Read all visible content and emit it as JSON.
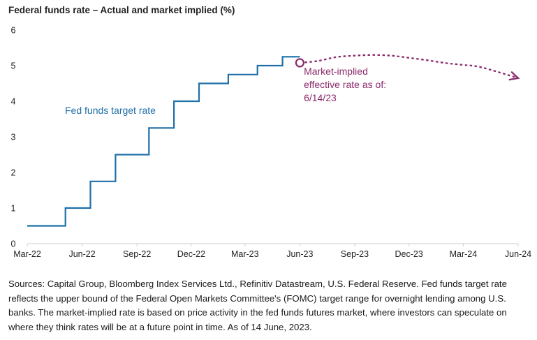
{
  "title": "Federal funds rate – Actual and market implied (%)",
  "source_note": "Sources: Capital Group, Bloomberg Index Services Ltd., Refinitiv Datastream, U.S. Federal Reserve. Fed funds target rate reflects the upper bound of the Federal Open Markets Committee's (FOMC) target range for overnight lending among U.S. banks. The market-implied rate is based on price activity in the fed funds futures market, where investors can speculate on where they think rates will be at a future point in time. As of 14 June, 2023.",
  "chart_data": {
    "type": "line",
    "title": "Federal funds rate – Actual and market implied (%)",
    "xlabel": "",
    "ylabel": "",
    "x_tick_labels": [
      "Mar-22",
      "Jun-22",
      "Sep-22",
      "Dec-22",
      "Mar-23",
      "Jun-23",
      "Sep-23",
      "Dec-23",
      "Mar-24",
      "Jun-24"
    ],
    "x_tick_dates": [
      "2022-03-01",
      "2022-06-01",
      "2022-09-01",
      "2022-12-01",
      "2023-03-01",
      "2023-06-01",
      "2023-09-01",
      "2023-12-01",
      "2024-03-01",
      "2024-06-01"
    ],
    "y_ticks": [
      0,
      1,
      2,
      3,
      4,
      5,
      6
    ],
    "xlim": [
      "2022-03-01",
      "2024-06-01"
    ],
    "ylim": [
      0,
      6
    ],
    "grid": false,
    "series": [
      {
        "name": "Fed funds target rate",
        "style": "step",
        "color": "#1f6fa8",
        "points": [
          [
            "2022-03-01",
            0.5
          ],
          [
            "2022-05-04",
            0.5
          ],
          [
            "2022-05-04",
            1.0
          ],
          [
            "2022-06-15",
            1.0
          ],
          [
            "2022-06-15",
            1.75
          ],
          [
            "2022-07-27",
            1.75
          ],
          [
            "2022-07-27",
            2.5
          ],
          [
            "2022-09-21",
            2.5
          ],
          [
            "2022-09-21",
            3.25
          ],
          [
            "2022-11-02",
            3.25
          ],
          [
            "2022-11-02",
            4.0
          ],
          [
            "2022-12-14",
            4.0
          ],
          [
            "2022-12-14",
            4.5
          ],
          [
            "2023-02-01",
            4.5
          ],
          [
            "2023-02-01",
            4.75
          ],
          [
            "2023-03-22",
            4.75
          ],
          [
            "2023-03-22",
            5.0
          ],
          [
            "2023-05-03",
            5.0
          ],
          [
            "2023-05-03",
            5.25
          ],
          [
            "2023-06-01",
            5.25
          ]
        ]
      },
      {
        "name": "Market-implied effective rate as of: 6/14/23",
        "style": "dotted",
        "color": "#8a2a6b",
        "points": [
          [
            "2023-06-01",
            5.08
          ],
          [
            "2023-07-01",
            5.13
          ],
          [
            "2023-08-01",
            5.24
          ],
          [
            "2023-09-01",
            5.28
          ],
          [
            "2023-10-01",
            5.3
          ],
          [
            "2023-11-01",
            5.28
          ],
          [
            "2023-12-01",
            5.22
          ],
          [
            "2024-01-01",
            5.15
          ],
          [
            "2024-02-01",
            5.07
          ],
          [
            "2024-03-01",
            5.02
          ],
          [
            "2024-04-01",
            4.95
          ],
          [
            "2024-06-01",
            4.65
          ]
        ]
      }
    ],
    "annotations": [
      {
        "lines": [
          "Fed funds target rate"
        ],
        "color": "#1f6fa8",
        "anchor": [
          "2022-07-01",
          3.65
        ]
      },
      {
        "lines": [
          "Market-implied",
          "effective rate as of:",
          "6/14/23"
        ],
        "color": "#8a2a6b",
        "anchor": [
          "2023-06-03",
          4.75
        ]
      }
    ]
  }
}
